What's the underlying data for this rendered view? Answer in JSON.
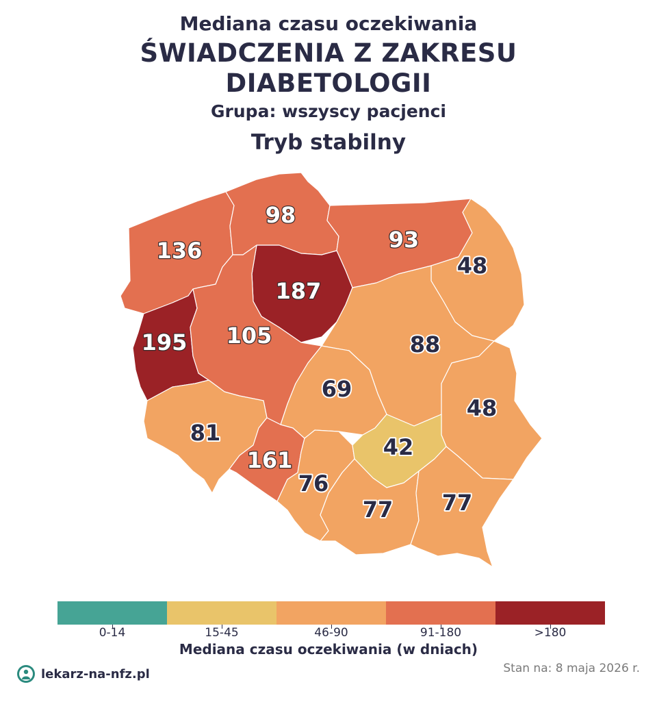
{
  "header": {
    "subtitle": "Mediana czasu oczekiwania",
    "title_line1": "ŚWIADCZENIA Z ZAKRESU",
    "title_line2": "DIABETOLOGII",
    "group": "Grupa: wszyscy pacjenci",
    "mode": "Tryb stabilny"
  },
  "map": {
    "regions": [
      {
        "key": "zachodniopomorskie",
        "value": "136",
        "color": "#e37050"
      },
      {
        "key": "pomorskie",
        "value": "98",
        "color": "#e37050"
      },
      {
        "key": "warminsko-mazurskie",
        "value": "93",
        "color": "#e37050"
      },
      {
        "key": "podlaskie",
        "value": "48",
        "color": "#f2a462"
      },
      {
        "key": "lubuskie",
        "value": "195",
        "color": "#9b2226"
      },
      {
        "key": "wielkopolskie",
        "value": "105",
        "color": "#e37050"
      },
      {
        "key": "kujawsko-pomorskie",
        "value": "187",
        "color": "#9b2226"
      },
      {
        "key": "mazowieckie",
        "value": "88",
        "color": "#f2a462"
      },
      {
        "key": "lodzkie",
        "value": "69",
        "color": "#f2a462"
      },
      {
        "key": "lubelskie",
        "value": "48",
        "color": "#f2a462"
      },
      {
        "key": "dolnoslaskie",
        "value": "81",
        "color": "#f2a462"
      },
      {
        "key": "opolskie",
        "value": "161",
        "color": "#e37050"
      },
      {
        "key": "slaskie",
        "value": "76",
        "color": "#f2a462"
      },
      {
        "key": "swietokrzyskie",
        "value": "42",
        "color": "#e9c46a"
      },
      {
        "key": "malopolskie",
        "value": "77",
        "color": "#f2a462"
      },
      {
        "key": "podkarpackie",
        "value": "77",
        "color": "#f2a462"
      }
    ]
  },
  "legend": {
    "title": "Mediana czasu oczekiwania (w dniach)",
    "bins": [
      {
        "label": "0-14",
        "color": "#46a495"
      },
      {
        "label": "15-45",
        "color": "#e9c46a"
      },
      {
        "label": "46-90",
        "color": "#f2a462"
      },
      {
        "label": "91-180",
        "color": "#e37050"
      },
      {
        "label": ">180",
        "color": "#9b2226"
      }
    ]
  },
  "footer": {
    "brand": "lekarz-na-nfz.pl",
    "date": "Stan na: 8 maja 2026 r."
  }
}
